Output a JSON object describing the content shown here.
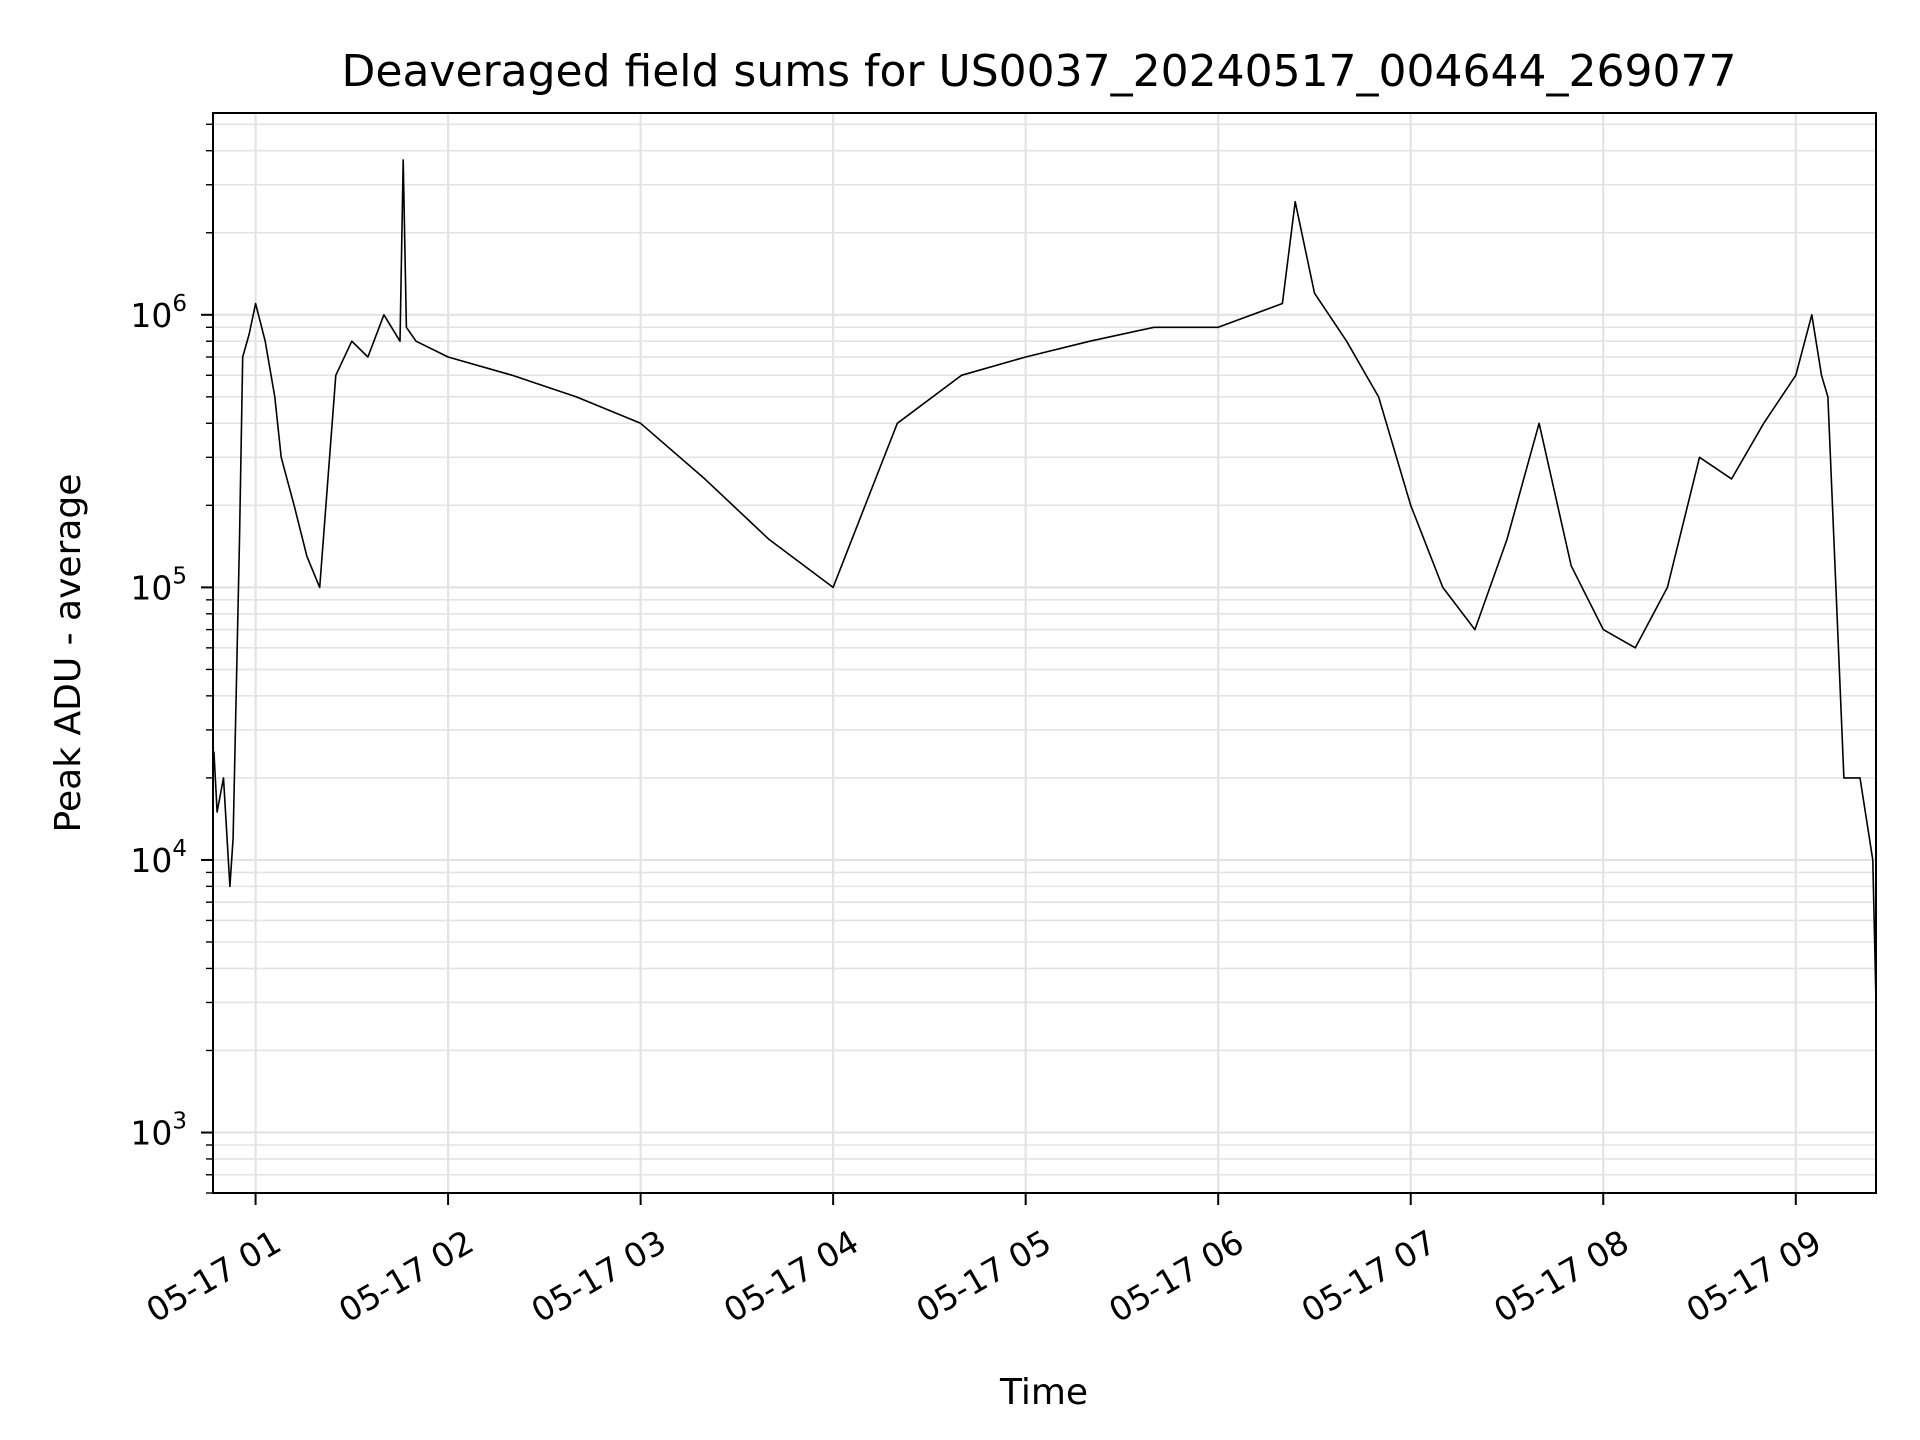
{
  "chart_data": {
    "type": "line",
    "title": "Deaveraged field sums for US0037_20240517_004644_269077",
    "xlabel": "Time",
    "ylabel": "Peak ADU - average",
    "yscale": "log",
    "grid": true,
    "legend": "none",
    "line_color": "#000000",
    "grid_color": "#e3e3e3",
    "xlim": [
      "2024-05-17 00:46:44",
      "2024-05-17 09:25:00"
    ],
    "ylim": [
      600,
      5500000
    ],
    "x_ticks": [
      "05-17 01",
      "05-17 02",
      "05-17 03",
      "05-17 04",
      "05-17 05",
      "05-17 06",
      "05-17 07",
      "05-17 08",
      "05-17 09"
    ],
    "y_ticks": [
      {
        "value": 1000,
        "base": "10",
        "exp": "3"
      },
      {
        "value": 10000,
        "base": "10",
        "exp": "4"
      },
      {
        "value": 100000,
        "base": "10",
        "exp": "5"
      },
      {
        "value": 1000000,
        "base": "10",
        "exp": "6"
      }
    ],
    "series": [
      {
        "x": [
          "00:47",
          "00:48",
          "00:50",
          "00:52",
          "00:53",
          "00:55",
          "00:56",
          "00:58",
          "01:00",
          "01:03",
          "01:06",
          "01:08",
          "01:12",
          "01:16",
          "01:20",
          "01:25",
          "01:30",
          "01:35",
          "01:40",
          "01:45",
          "01:46",
          "01:47",
          "01:50",
          "02:00",
          "02:20",
          "02:40",
          "03:00",
          "03:20",
          "03:40",
          "04:00",
          "04:20",
          "04:40",
          "05:00",
          "05:20",
          "05:40",
          "06:00",
          "06:20",
          "06:24",
          "06:30",
          "06:40",
          "06:50",
          "07:00",
          "07:10",
          "07:20",
          "07:30",
          "07:40",
          "07:50",
          "08:00",
          "08:10",
          "08:20",
          "08:30",
          "08:40",
          "08:50",
          "09:00",
          "09:05",
          "09:08",
          "09:10",
          "09:15",
          "09:20",
          "09:24",
          "09:25"
        ],
        "y": [
          25000,
          15000,
          20000,
          8000,
          12000,
          150000,
          700000,
          850000,
          1100000,
          800000,
          500000,
          300000,
          200000,
          130000,
          100000,
          600000,
          800000,
          700000,
          1000000,
          800000,
          3700000,
          900000,
          800000,
          700000,
          600000,
          500000,
          400000,
          250000,
          150000,
          100000,
          400000,
          600000,
          700000,
          800000,
          900000,
          900000,
          1100000,
          2600000,
          1200000,
          800000,
          500000,
          200000,
          100000,
          70000,
          150000,
          400000,
          120000,
          70000,
          60000,
          100000,
          300000,
          250000,
          400000,
          600000,
          1000000,
          600000,
          500000,
          20000,
          20000,
          10000,
          3000
        ]
      }
    ]
  }
}
